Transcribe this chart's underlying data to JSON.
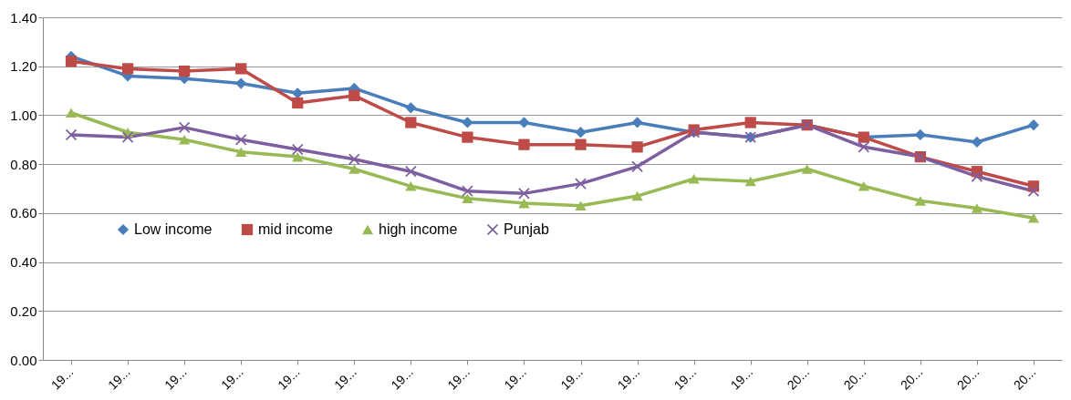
{
  "chart_data": {
    "type": "line",
    "categories": [
      "19...",
      "19...",
      "19...",
      "19...",
      "19...",
      "19...",
      "19...",
      "19...",
      "19...",
      "19...",
      "19...",
      "19...",
      "19...",
      "20...",
      "20...",
      "20...",
      "20...",
      "20..."
    ],
    "ylim": [
      0,
      1.4
    ],
    "yticks": [
      {
        "value": 0,
        "label": "0.00"
      },
      {
        "value": 0.2,
        "label": "0.20"
      },
      {
        "value": 0.4,
        "label": "0.40"
      },
      {
        "value": 0.6,
        "label": "0.60"
      },
      {
        "value": 0.8,
        "label": "0.80"
      },
      {
        "value": 1.0,
        "label": "1.00"
      },
      {
        "value": 1.2,
        "label": "1.20"
      },
      {
        "value": 1.4,
        "label": "1.40"
      }
    ],
    "grid": "y",
    "legend": "left",
    "line_style": "solid",
    "series": [
      {
        "name": "Low income",
        "color": "#4a7ebb",
        "marker": "diamond",
        "values": [
          1.24,
          1.16,
          1.15,
          1.13,
          1.09,
          1.11,
          1.03,
          0.97,
          0.97,
          0.93,
          0.97,
          0.93,
          0.91,
          0.96,
          0.91,
          0.92,
          0.89,
          0.96
        ]
      },
      {
        "name": "mid income",
        "color": "#be4b48",
        "marker": "square",
        "values": [
          1.22,
          1.19,
          1.18,
          1.19,
          1.05,
          1.08,
          0.97,
          0.91,
          0.88,
          0.88,
          0.87,
          0.94,
          0.97,
          0.96,
          0.91,
          0.83,
          0.77,
          0.71
        ]
      },
      {
        "name": "high income",
        "color": "#98b954",
        "marker": "triangle",
        "values": [
          1.01,
          0.93,
          0.9,
          0.85,
          0.83,
          0.78,
          0.71,
          0.66,
          0.64,
          0.63,
          0.67,
          0.74,
          0.73,
          0.78,
          0.71,
          0.65,
          0.62,
          0.58
        ]
      },
      {
        "name": "Punjab",
        "color": "#7d5fa0",
        "marker": "cross",
        "values": [
          0.92,
          0.91,
          0.95,
          0.9,
          0.86,
          0.82,
          0.77,
          0.69,
          0.68,
          0.72,
          0.79,
          0.93,
          0.91,
          0.96,
          0.87,
          0.83,
          0.75,
          0.69
        ]
      }
    ]
  }
}
